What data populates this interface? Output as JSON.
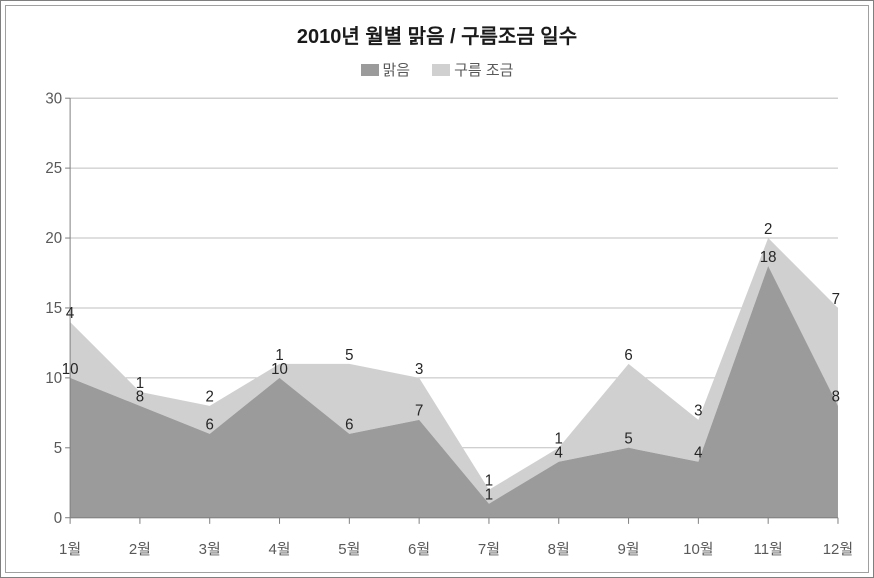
{
  "chart": {
    "type": "stacked-area",
    "title": "2010년 월별 맑음 / 구름조금 일수",
    "title_fontsize": 20,
    "background_color": "#ffffff",
    "border_color": "#7f7f7f",
    "inner_border_color": "#a0a0a0",
    "plot_background": "#ffffff",
    "categories": [
      "1월",
      "2월",
      "3월",
      "4월",
      "5월",
      "6월",
      "7월",
      "8월",
      "9월",
      "10월",
      "11월",
      "12월"
    ],
    "series": [
      {
        "name": "맑음",
        "color": "#9b9b9b",
        "values": [
          10,
          8,
          6,
          10,
          6,
          7,
          1,
          4,
          5,
          4,
          18,
          8
        ]
      },
      {
        "name": "구름 조금",
        "color": "#d0d0d0",
        "values": [
          4,
          1,
          2,
          1,
          5,
          3,
          1,
          1,
          6,
          3,
          2,
          7
        ]
      }
    ],
    "y": {
      "min": 0,
      "max": 30,
      "tick_step": 5
    },
    "gridline_color": "#bfbfbf",
    "axis_color": "#808080",
    "tickmark_color": "#808080",
    "label_color": "#595959",
    "label_fontsize": 15,
    "data_label_color": "#262626",
    "data_label_fontsize": 15,
    "legend": {
      "position": "top",
      "fontsize": 15,
      "color": "#595959"
    }
  }
}
